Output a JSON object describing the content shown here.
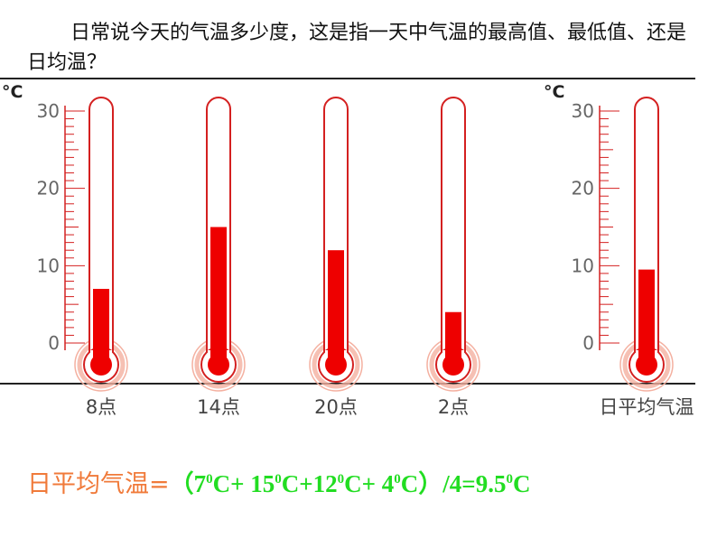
{
  "question": "日常说今天的气温多少度，这是指一天中气温的最高值、最低值、还是日均温？",
  "chart_data": {
    "type": "thermometer",
    "unit": "°C",
    "ticks": [
      "0",
      "10",
      "20",
      "30"
    ],
    "ylim": [
      0,
      30
    ],
    "thermometers": [
      {
        "label": "8点",
        "value": 7
      },
      {
        "label": "14点",
        "value": 15
      },
      {
        "label": "20点",
        "value": 12
      },
      {
        "label": "2点",
        "value": 4
      },
      {
        "label": "日平均气温",
        "value": 9.5
      }
    ],
    "colors": {
      "mercury": "#ee0000",
      "tube": "#d42020",
      "bulb_glow": "#f4b0a0"
    }
  },
  "formula": {
    "label": "日平均气温=",
    "open": "（",
    "t1": "7",
    "t2": "15",
    "t3": "12",
    "t4": "4",
    "sup": "0",
    "unit": "C",
    "plus": "+ ",
    "plus2": "+",
    "close": "）/4=",
    "result": "9.5"
  }
}
